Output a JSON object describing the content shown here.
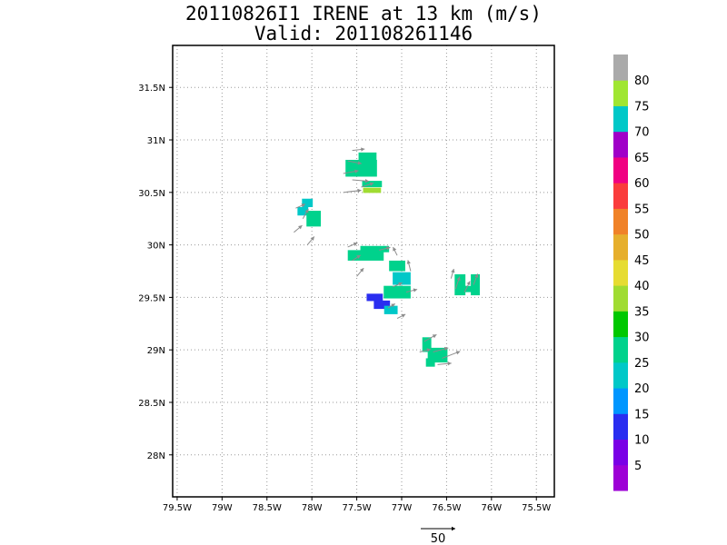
{
  "header": {
    "title": "20110826I1 IRENE at 13 km (m/s)",
    "valid": "Valid: 201108261146"
  },
  "chart_data": {
    "type": "heatmap",
    "title": "20110826I1 IRENE at 13 km (m/s)",
    "subtitle": "Valid: 201108261146",
    "xlabel": "",
    "ylabel": "",
    "xlim": [
      -79.55,
      -75.3
    ],
    "ylim": [
      27.6,
      31.9
    ],
    "grid": true,
    "x_ticks": [
      {
        "v": -79.5,
        "label": "79.5W"
      },
      {
        "v": -79.0,
        "label": "79W"
      },
      {
        "v": -78.5,
        "label": "78.5W"
      },
      {
        "v": -78.0,
        "label": "78W"
      },
      {
        "v": -77.5,
        "label": "77.5W"
      },
      {
        "v": -77.0,
        "label": "77W"
      },
      {
        "v": -76.5,
        "label": "76.5W"
      },
      {
        "v": -76.0,
        "label": "76W"
      },
      {
        "v": -75.5,
        "label": "75.5W"
      }
    ],
    "y_ticks": [
      {
        "v": 28.0,
        "label": "28N"
      },
      {
        "v": 28.5,
        "label": "28.5N"
      },
      {
        "v": 29.0,
        "label": "29N"
      },
      {
        "v": 29.5,
        "label": "29.5N"
      },
      {
        "v": 30.0,
        "label": "30N"
      },
      {
        "v": 30.5,
        "label": "30.5N"
      },
      {
        "v": 31.0,
        "label": "31N"
      },
      {
        "v": 31.5,
        "label": "31.5N"
      }
    ],
    "colorbar": {
      "labels": [
        "5",
        "10",
        "15",
        "20",
        "25",
        "30",
        "35",
        "40",
        "45",
        "50",
        "55",
        "60",
        "65",
        "70",
        "75",
        "80"
      ],
      "colors": [
        "#9d00d6",
        "#7a00e6",
        "#2a2ef0",
        "#0096ff",
        "#00c8c8",
        "#00d28c",
        "#00c800",
        "#a0dc32",
        "#e6dc32",
        "#e6af2d",
        "#f08228",
        "#fa3c3c",
        "#f00082",
        "#a000c8",
        "#00c8c8",
        "#a0e632",
        "#aaaaaa"
      ]
    },
    "cells": [
      {
        "lon": -77.38,
        "lat": 30.83,
        "w": 0.2,
        "h": 0.1,
        "v": 25
      },
      {
        "lon": -77.45,
        "lat": 30.73,
        "w": 0.35,
        "h": 0.16,
        "v": 25
      },
      {
        "lon": -77.33,
        "lat": 30.58,
        "w": 0.22,
        "h": 0.06,
        "v": 28
      },
      {
        "lon": -77.33,
        "lat": 30.52,
        "w": 0.2,
        "h": 0.05,
        "v": 35
      },
      {
        "lon": -78.05,
        "lat": 30.4,
        "w": 0.12,
        "h": 0.08,
        "v": 20
      },
      {
        "lon": -78.1,
        "lat": 30.32,
        "w": 0.12,
        "h": 0.08,
        "v": 20
      },
      {
        "lon": -77.98,
        "lat": 30.25,
        "w": 0.16,
        "h": 0.15,
        "v": 28
      },
      {
        "lon": -77.3,
        "lat": 29.96,
        "w": 0.32,
        "h": 0.06,
        "v": 28
      },
      {
        "lon": -77.4,
        "lat": 29.9,
        "w": 0.4,
        "h": 0.1,
        "v": 25
      },
      {
        "lon": -77.05,
        "lat": 29.8,
        "w": 0.18,
        "h": 0.1,
        "v": 25
      },
      {
        "lon": -77.0,
        "lat": 29.68,
        "w": 0.2,
        "h": 0.12,
        "v": 20
      },
      {
        "lon": -77.05,
        "lat": 29.55,
        "w": 0.3,
        "h": 0.12,
        "v": 25
      },
      {
        "lon": -77.3,
        "lat": 29.5,
        "w": 0.18,
        "h": 0.07,
        "v": 12
      },
      {
        "lon": -77.22,
        "lat": 29.43,
        "w": 0.18,
        "h": 0.08,
        "v": 14
      },
      {
        "lon": -77.12,
        "lat": 29.38,
        "w": 0.15,
        "h": 0.08,
        "v": 22
      },
      {
        "lon": -76.35,
        "lat": 29.62,
        "w": 0.12,
        "h": 0.2,
        "v": 25
      },
      {
        "lon": -76.18,
        "lat": 29.62,
        "w": 0.1,
        "h": 0.2,
        "v": 25
      },
      {
        "lon": -76.3,
        "lat": 29.58,
        "w": 0.2,
        "h": 0.06,
        "v": 25
      },
      {
        "lon": -76.72,
        "lat": 29.05,
        "w": 0.1,
        "h": 0.14,
        "v": 28
      },
      {
        "lon": -76.6,
        "lat": 28.95,
        "w": 0.22,
        "h": 0.14,
        "v": 28
      },
      {
        "lon": -76.68,
        "lat": 28.88,
        "w": 0.1,
        "h": 0.08,
        "v": 28
      }
    ],
    "vectors": [
      {
        "lon": -77.55,
        "lat": 30.9,
        "u": 18,
        "v": 2
      },
      {
        "lon": -77.6,
        "lat": 30.8,
        "u": 20,
        "v": -4
      },
      {
        "lon": -77.65,
        "lat": 30.68,
        "u": 22,
        "v": 4
      },
      {
        "lon": -77.55,
        "lat": 30.62,
        "u": 24,
        "v": -2
      },
      {
        "lon": -77.65,
        "lat": 30.5,
        "u": 26,
        "v": 3
      },
      {
        "lon": -77.45,
        "lat": 30.55,
        "u": 18,
        "v": 6
      },
      {
        "lon": -78.18,
        "lat": 30.35,
        "u": 14,
        "v": 6
      },
      {
        "lon": -78.2,
        "lat": 30.12,
        "u": 12,
        "v": 10
      },
      {
        "lon": -78.05,
        "lat": 30.0,
        "u": 10,
        "v": 12
      },
      {
        "lon": -78.1,
        "lat": 30.25,
        "u": 8,
        "v": 14
      },
      {
        "lon": -77.6,
        "lat": 29.98,
        "u": 14,
        "v": 6
      },
      {
        "lon": -77.55,
        "lat": 29.85,
        "u": 12,
        "v": 8
      },
      {
        "lon": -77.5,
        "lat": 29.7,
        "u": 10,
        "v": 12
      },
      {
        "lon": -77.25,
        "lat": 29.95,
        "u": 16,
        "v": 4
      },
      {
        "lon": -77.05,
        "lat": 29.9,
        "u": -6,
        "v": 12
      },
      {
        "lon": -76.9,
        "lat": 29.75,
        "u": -4,
        "v": 16
      },
      {
        "lon": -77.1,
        "lat": 29.6,
        "u": 14,
        "v": 6
      },
      {
        "lon": -76.95,
        "lat": 29.55,
        "u": 16,
        "v": 4
      },
      {
        "lon": -77.15,
        "lat": 29.4,
        "u": 10,
        "v": 6
      },
      {
        "lon": -77.05,
        "lat": 29.3,
        "u": 12,
        "v": 6
      },
      {
        "lon": -76.4,
        "lat": 29.58,
        "u": 6,
        "v": 18
      },
      {
        "lon": -76.3,
        "lat": 29.55,
        "u": 8,
        "v": 16
      },
      {
        "lon": -76.2,
        "lat": 29.62,
        "u": 6,
        "v": 16
      },
      {
        "lon": -76.45,
        "lat": 29.68,
        "u": 4,
        "v": 14
      },
      {
        "lon": -76.75,
        "lat": 29.08,
        "u": 18,
        "v": 10
      },
      {
        "lon": -76.65,
        "lat": 28.98,
        "u": 22,
        "v": 6
      },
      {
        "lon": -76.55,
        "lat": 28.92,
        "u": 26,
        "v": 10
      },
      {
        "lon": -76.8,
        "lat": 28.98,
        "u": 16,
        "v": 4
      },
      {
        "lon": -76.6,
        "lat": 28.86,
        "u": 20,
        "v": 2
      }
    ],
    "reference_vector": {
      "label": "50",
      "value": 50
    }
  }
}
